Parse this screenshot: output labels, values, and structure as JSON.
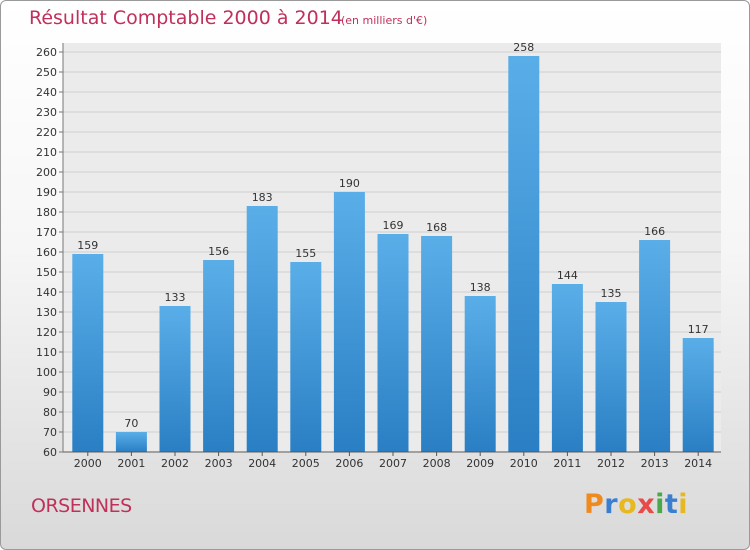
{
  "header": {
    "title": "Résultat Comptable 2000 à 2014",
    "subtitle": "(en milliers d'€)"
  },
  "footer": {
    "place": "ORSENNES",
    "brand": [
      "P",
      "r",
      "o",
      "x",
      "i",
      "t",
      "i"
    ]
  },
  "colors": {
    "title": "#c0305a",
    "bar_light": "#5aaee8",
    "bar_dark": "#2a7fc4",
    "brand": [
      "#f08a1e",
      "#3a7ed0",
      "#e8b820",
      "#e84a4a",
      "#4aa84a",
      "#3a7ed0",
      "#e8b820"
    ]
  },
  "chart_data": {
    "type": "bar",
    "title": "Résultat Comptable 2000 à 2014",
    "xlabel": "",
    "ylabel": "",
    "categories": [
      "2000",
      "2001",
      "2002",
      "2003",
      "2004",
      "2005",
      "2006",
      "2007",
      "2008",
      "2009",
      "2010",
      "2011",
      "2012",
      "2013",
      "2014"
    ],
    "values": [
      159,
      70,
      133,
      156,
      183,
      155,
      190,
      169,
      168,
      138,
      258,
      144,
      135,
      166,
      117
    ],
    "ylim": [
      60,
      260
    ],
    "yticks": [
      60,
      70,
      80,
      90,
      100,
      110,
      120,
      130,
      140,
      150,
      160,
      170,
      180,
      190,
      200,
      210,
      220,
      230,
      240,
      250,
      260
    ],
    "grid": true
  }
}
